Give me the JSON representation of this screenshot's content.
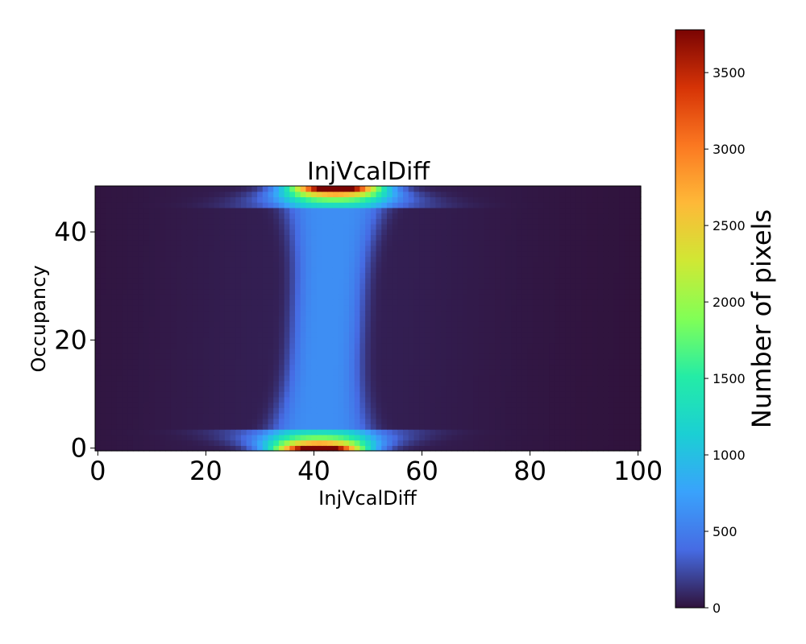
{
  "chart_data": {
    "type": "heatmap",
    "title": "InjVcalDiff",
    "xlabel": "InjVcalDiff",
    "ylabel": "Occupancy",
    "xlim": [
      -0.5,
      100.5
    ],
    "ylim": [
      -0.5,
      48.5
    ],
    "x_bins": 101,
    "y_bins": 49,
    "xticks": [
      0,
      20,
      40,
      60,
      80,
      100
    ],
    "yticks": [
      0,
      20,
      40
    ],
    "colormap": "turbo",
    "colorbar": {
      "label": "Number of pixels",
      "range": [
        0,
        3780
      ],
      "ticks": [
        0,
        500,
        1000,
        1500,
        2000,
        2500,
        3000,
        3500
      ]
    },
    "distribution": {
      "background_value": 0,
      "band_center_x": [
        41,
        44
      ],
      "band_halfwidth_edges": 9,
      "band_halfwidth_middle": 5.5,
      "band_plateau_value": 560,
      "bottom_row_peak_value": 3780,
      "bottom_row_peak_x": 41,
      "top_row_peak_value": 3780,
      "top_row_peak_x": 44,
      "dark_halo_halfwidth": 25,
      "dark_halo_value": 60
    },
    "grid": false
  }
}
